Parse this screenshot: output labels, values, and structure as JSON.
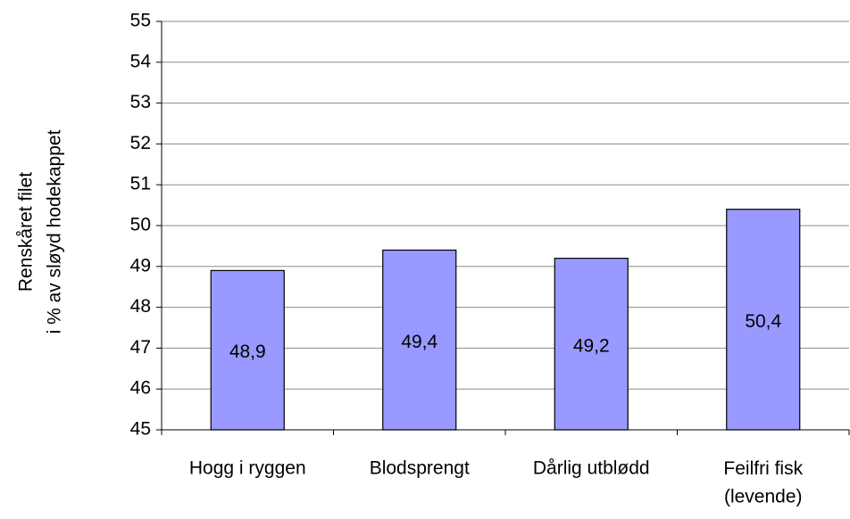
{
  "chart_data": {
    "type": "bar",
    "y_label": [
      "Renskåret filet",
      "i % av sløyd hodekappet"
    ],
    "categories": [
      "Hogg i ryggen",
      "Blodsprengt",
      "Dårlig utblødd",
      "Feilfri fisk\n(levende)"
    ],
    "values": [
      48.9,
      49.4,
      49.2,
      50.4
    ],
    "value_labels": [
      "48,9",
      "49,4",
      "49,2",
      "50,4"
    ],
    "color": "#9999ff",
    "ylim": [
      45,
      55
    ],
    "yticks": [
      45,
      46,
      47,
      48,
      49,
      50,
      51,
      52,
      53,
      54,
      55
    ],
    "grid": true
  }
}
